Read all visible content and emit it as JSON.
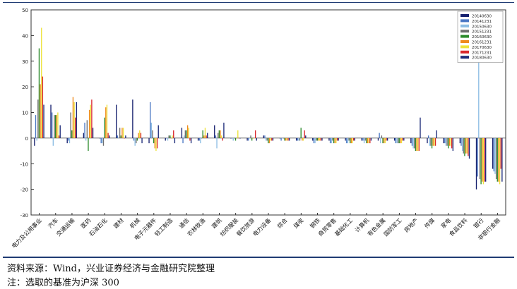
{
  "chart_data": {
    "type": "bar",
    "ylim": [
      -30,
      50
    ],
    "yticks": [
      -30,
      -20,
      -10,
      0,
      10,
      20,
      30,
      40,
      50
    ],
    "grid": false,
    "legend_position": "top-right",
    "categories": [
      "电力及公用事业",
      "汽车",
      "交通运输",
      "医药",
      "石油石化",
      "建材",
      "机械",
      "电子元器件",
      "轻工制造",
      "通信",
      "农林牧渔",
      "建筑",
      "纺织服装",
      "餐饮旅游",
      "电力设备",
      "综合",
      "煤炭",
      "钢铁",
      "商贸零售",
      "基础化工",
      "计算机",
      "有色金属",
      "国防军工",
      "房地产",
      "传媒",
      "家电",
      "食品饮料",
      "银行",
      "非银行金融"
    ],
    "series": [
      {
        "name": "20140630",
        "color": "#16206e",
        "values": [
          -3,
          13,
          -2,
          2,
          0,
          13,
          15,
          -2,
          -1,
          4,
          -1,
          5,
          0,
          -1,
          1,
          0,
          -1,
          -1,
          -1,
          -1,
          -1,
          -1,
          -1,
          -2,
          -2,
          -2,
          -2,
          -20,
          -12
        ]
      },
      {
        "name": "20141231",
        "color": "#4a77c4",
        "values": [
          9,
          10,
          -1,
          6,
          -2,
          1,
          -1,
          14,
          0,
          -2,
          -1,
          1,
          0,
          -1,
          1,
          -1,
          -1,
          -2,
          -2,
          -2,
          -1,
          2,
          -2,
          -3,
          1,
          -2,
          -3,
          -15,
          -13
        ]
      },
      {
        "name": "20150630",
        "color": "#8cbde4",
        "values": [
          -1,
          -3,
          -2,
          -1,
          -2,
          0,
          -3,
          6,
          -1,
          1,
          -2,
          -4,
          -1,
          0,
          -1,
          0,
          -1,
          -2,
          -2,
          -2,
          -2,
          -2,
          -2,
          -4,
          -3,
          -3,
          -5,
          47,
          -14
        ]
      },
      {
        "name": "20151231",
        "color": "#6f6f6f",
        "values": [
          15,
          9,
          10,
          7,
          -3,
          4,
          -2,
          3,
          1,
          3,
          0,
          2,
          0,
          1,
          -1,
          0,
          -1,
          -1,
          -1,
          -1,
          -1,
          1,
          -2,
          -4,
          -3,
          -3,
          -6,
          -16,
          -16
        ]
      },
      {
        "name": "20160630",
        "color": "#2b8a2b",
        "values": [
          35,
          9,
          3,
          -5,
          8,
          1,
          -1,
          -2,
          1,
          3,
          3,
          3,
          -1,
          -1,
          -2,
          -1,
          4,
          -1,
          -2,
          -2,
          -2,
          -2,
          -2,
          -5,
          -4,
          -4,
          -7,
          -18,
          -17
        ]
      },
      {
        "name": "20161231",
        "color": "#ef8a1c",
        "values": [
          21,
          9,
          16,
          11,
          12,
          4,
          2,
          -4,
          0,
          5,
          1,
          3,
          0,
          0,
          -2,
          -1,
          -1,
          -1,
          -2,
          -2,
          -2,
          -2,
          -2,
          -5,
          -3,
          -3,
          -6,
          -17,
          -17
        ]
      },
      {
        "name": "20170630",
        "color": "#ede23a",
        "values": [
          43,
          10,
          14,
          13,
          13,
          4,
          3,
          -5,
          1,
          4,
          4,
          1,
          3,
          0,
          -1,
          -1,
          -1,
          -1,
          -2,
          -2,
          -2,
          -2,
          -2,
          -5,
          -3,
          -3,
          -6,
          -18,
          -18
        ]
      },
      {
        "name": "20171231",
        "color": "#d9262b",
        "values": [
          24,
          1,
          8,
          15,
          2,
          0,
          2,
          -4,
          3,
          -1,
          1,
          -1,
          0,
          3,
          -1,
          -1,
          3,
          -1,
          -1,
          -1,
          -2,
          -1,
          -1,
          -5,
          -3,
          -4,
          -7,
          -17,
          -12
        ]
      },
      {
        "name": "20180630",
        "color": "#1c2a78",
        "values": [
          13,
          5,
          14,
          4,
          1,
          1,
          -2,
          5,
          -2,
          -2,
          2,
          6,
          0,
          -1,
          -1,
          -1,
          1,
          -1,
          -1,
          -1,
          -1,
          -1,
          -1,
          8,
          3,
          -5,
          -8,
          -17,
          -17
        ]
      }
    ]
  },
  "notes": {
    "source": "资料来源：Wind，兴业证券经济与金融研究院整理",
    "remark": "注：选取的基准为沪深 300"
  }
}
